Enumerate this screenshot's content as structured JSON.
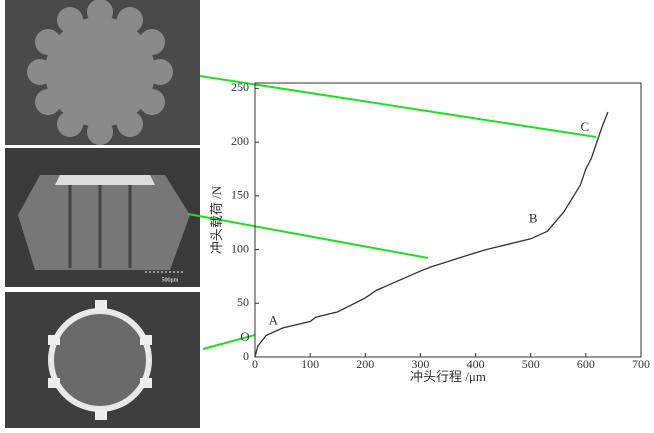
{
  "chart_data": {
    "type": "line",
    "xlabel": "冲头行程 /μm",
    "ylabel": "冲头载荷 /N",
    "x": [
      0,
      5,
      20,
      50,
      100,
      110,
      150,
      200,
      220,
      300,
      320,
      400,
      420,
      500,
      530,
      560,
      590,
      600,
      610,
      620,
      630,
      640
    ],
    "series": [
      {
        "color": "#333333",
        "values": [
          0,
          10,
          20,
          27,
          33,
          37,
          42,
          55,
          62,
          80,
          84,
          97,
          100,
          110,
          117,
          135,
          160,
          175,
          185,
          200,
          215,
          228
        ]
      }
    ],
    "xlim": [
      0,
      700
    ],
    "xticks": [
      0,
      100,
      200,
      300,
      400,
      500,
      600,
      700
    ],
    "ylim": [
      0,
      255
    ],
    "yticks": [
      0,
      50,
      100,
      150,
      200,
      250
    ],
    "annotations": [
      {
        "text": "O",
        "x": 0,
        "y": 10
      },
      {
        "text": "A",
        "x": 15,
        "y": 22
      },
      {
        "text": "B",
        "x": 530,
        "y": 117
      },
      {
        "text": "C",
        "x": 620,
        "y": 200
      }
    ],
    "scale_bar": "500μm"
  }
}
